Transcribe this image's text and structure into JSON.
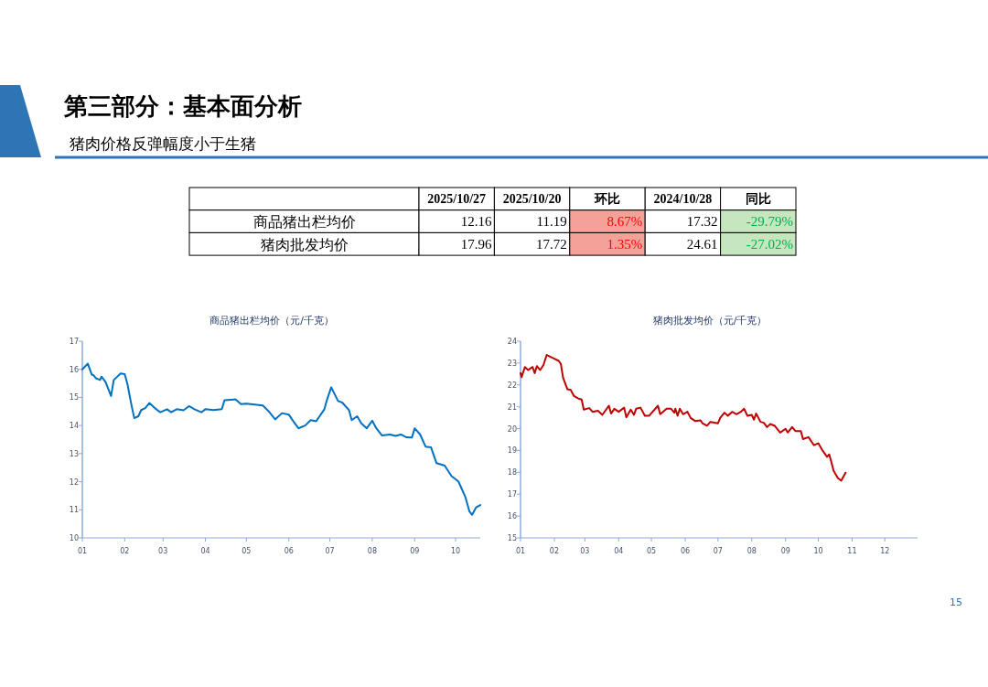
{
  "chart_data": [
    {
      "type": "heatmap",
      "title": "第三部分：基本面分析",
      "subtitle": "猪肉价格反弹幅度小于生猪",
      "annotations": [
        "15"
      ],
      "categories": [
        "2025/10/27",
        "2025/10/20",
        "环比",
        "2024/10/28",
        "同比"
      ],
      "y_categories": [
        "商品猪出栏均价",
        "猪肉批发均价"
      ],
      "cells": [
        [
          12.16,
          11.19,
          8.67,
          17.32,
          -29.79
        ],
        [
          17.96,
          17.72,
          1.35,
          24.61,
          -27.02
        ]
      ],
      "cell_labels": [
        [
          "12.16",
          "11.19",
          "8.67%",
          "17.32",
          "-29.79%"
        ],
        [
          "17.96",
          "17.72",
          "1.35%",
          "24.61",
          "-27.02%"
        ]
      ],
      "colors": [
        [
          "#ffffff",
          "#ffffff",
          "#f4a19a",
          "#ffffff",
          "#c6e6c0"
        ],
        [
          "#ffffff",
          "#ffffff",
          "#f4a19a",
          "#ffffff",
          "#c6e6c0"
        ]
      ]
    },
    {
      "type": "line",
      "title": "商品猪出栏均价（元/千克）",
      "xlim": [
        "--01-01",
        "--10-19"
      ],
      "xticks": [
        {
          "value": "--01-01",
          "label": "01"
        },
        {
          "value": "--02-01",
          "label": "02"
        },
        {
          "value": "--03-01",
          "label": "03"
        },
        {
          "value": "--04-01",
          "label": "04"
        },
        {
          "value": "--05-01",
          "label": "05"
        },
        {
          "value": "--06-01",
          "label": "06"
        },
        {
          "value": "--07-01",
          "label": "07"
        },
        {
          "value": "--08-01",
          "label": "08"
        },
        {
          "value": "--09-01",
          "label": "09"
        },
        {
          "value": "--10-01",
          "label": "10"
        }
      ],
      "ylim": [
        10,
        17
      ],
      "yticks": [
        10,
        11,
        12,
        13,
        14,
        15,
        16,
        17
      ],
      "x": [
        "--01-01",
        "--01-05",
        "--01-08",
        "--01-09",
        "--01-11",
        "--01-14",
        "--01-15",
        "--01-18",
        "--01-22",
        "--01-24",
        "--01-29",
        "--02-01",
        "--02-03",
        "--02-06",
        "--02-08",
        "--02-11",
        "--02-13",
        "--02-16",
        "--02-19",
        "--02-23",
        "--02-27",
        "--03-04",
        "--03-07",
        "--03-11",
        "--03-16",
        "--03-20",
        "--03-24",
        "--03-29",
        "--04-01",
        "--04-07",
        "--04-13",
        "--04-15",
        "--04-23",
        "--04-27",
        "--05-01",
        "--05-13",
        "--05-17",
        "--05-22",
        "--05-27",
        "--06-01",
        "--06-04",
        "--06-08",
        "--06-13",
        "--06-17",
        "--06-21",
        "--06-27",
        "--06-29",
        "--07-02",
        "--07-07",
        "--07-10",
        "--07-15",
        "--07-17",
        "--07-21",
        "--07-24",
        "--07-28",
        "--08-01",
        "--08-04",
        "--08-08",
        "--08-14",
        "--08-18",
        "--08-22",
        "--08-26",
        "--08-30",
        "--09-01",
        "--09-05",
        "--09-09",
        "--09-13",
        "--09-17",
        "--09-23",
        "--09-28",
        "--10-03",
        "--10-08",
        "--10-11",
        "--10-13",
        "--10-16",
        "--10-19"
      ],
      "series": [
        {
          "color": "#0070c0",
          "values": [
            16.0,
            16.2,
            15.8,
            15.8,
            15.68,
            15.62,
            15.74,
            15.55,
            15.05,
            15.62,
            15.85,
            15.83,
            15.47,
            14.71,
            14.26,
            14.33,
            14.55,
            14.62,
            14.8,
            14.62,
            14.47,
            14.58,
            14.47,
            14.58,
            14.54,
            14.69,
            14.58,
            14.47,
            14.58,
            14.55,
            14.58,
            14.9,
            14.93,
            14.76,
            14.78,
            14.71,
            14.52,
            14.22,
            14.44,
            14.39,
            14.17,
            13.9,
            14.0,
            14.19,
            14.15,
            14.58,
            14.93,
            15.36,
            14.87,
            14.82,
            14.55,
            14.19,
            14.33,
            14.08,
            13.9,
            14.17,
            13.9,
            13.65,
            13.68,
            13.63,
            13.68,
            13.58,
            13.57,
            13.9,
            13.68,
            13.25,
            13.22,
            12.66,
            12.57,
            12.2,
            12.01,
            11.47,
            10.95,
            10.82,
            11.09,
            11.17
          ]
        }
      ]
    },
    {
      "type": "line",
      "title": "猪肉批发均价（元/千克）",
      "xlim": [
        "--01-01",
        "--12-31"
      ],
      "xticks": [
        {
          "value": "--01-01",
          "label": "01"
        },
        {
          "value": "--02-01",
          "label": "02"
        },
        {
          "value": "--03-01",
          "label": "03"
        },
        {
          "value": "--04-01",
          "label": "04"
        },
        {
          "value": "--05-01",
          "label": "05"
        },
        {
          "value": "--06-01",
          "label": "06"
        },
        {
          "value": "--07-01",
          "label": "07"
        },
        {
          "value": "--08-01",
          "label": "08"
        },
        {
          "value": "--09-01",
          "label": "09"
        },
        {
          "value": "--10-01",
          "label": "10"
        },
        {
          "value": "--11-01",
          "label": "11"
        },
        {
          "value": "--12-01",
          "label": "12"
        }
      ],
      "ylim": [
        15,
        24
      ],
      "yticks": [
        15,
        16,
        17,
        18,
        19,
        20,
        21,
        22,
        23,
        24
      ],
      "x": [
        "--01-01",
        "--01-02",
        "--01-05",
        "--01-08",
        "--01-12",
        "--01-14",
        "--01-16",
        "--01-19",
        "--01-22",
        "--01-25",
        "--02-01",
        "--02-05",
        "--02-07",
        "--02-09",
        "--02-13",
        "--02-16",
        "--02-19",
        "--02-23",
        "--02-26",
        "--02-28",
        "--03-05",
        "--03-08",
        "--03-13",
        "--03-17",
        "--03-23",
        "--03-25",
        "--03-28",
        "--04-01",
        "--04-06",
        "--04-08",
        "--04-12",
        "--04-15",
        "--04-17",
        "--04-21",
        "--04-25",
        "--04-29",
        "--05-07",
        "--05-09",
        "--05-15",
        "--05-19",
        "--05-22",
        "--05-23",
        "--05-25",
        "--05-27",
        "--05-30",
        "--06-03",
        "--06-06",
        "--06-10",
        "--06-15",
        "--06-17",
        "--06-21",
        "--06-24",
        "--07-01",
        "--07-03",
        "--07-07",
        "--07-10",
        "--07-14",
        "--07-18",
        "--07-22",
        "--07-25",
        "--07-28",
        "--08-01",
        "--08-03",
        "--08-05",
        "--08-09",
        "--08-12",
        "--08-15",
        "--08-18",
        "--08-22",
        "--08-27",
        "--09-01",
        "--09-03",
        "--09-07",
        "--09-10",
        "--09-15",
        "--09-17",
        "--09-22",
        "--09-27",
        "--10-01",
        "--10-05",
        "--10-09",
        "--10-11",
        "--10-13",
        "--10-15",
        "--10-19",
        "--10-22",
        "--10-26"
      ],
      "series": [
        {
          "color": "#c00000",
          "values": [
            22.54,
            22.36,
            22.82,
            22.68,
            22.82,
            22.54,
            22.86,
            22.68,
            22.91,
            23.37,
            23.2,
            23.1,
            22.96,
            22.33,
            21.8,
            21.77,
            21.49,
            21.38,
            21.33,
            20.87,
            20.94,
            20.77,
            20.82,
            20.63,
            21.05,
            20.69,
            20.91,
            20.77,
            20.96,
            20.52,
            20.87,
            20.63,
            20.91,
            20.96,
            20.59,
            20.59,
            21.05,
            20.66,
            20.91,
            20.91,
            20.73,
            20.91,
            20.59,
            20.91,
            20.66,
            20.77,
            20.49,
            20.35,
            20.38,
            20.24,
            20.13,
            20.31,
            20.24,
            20.49,
            20.73,
            20.59,
            20.77,
            20.66,
            20.77,
            20.91,
            20.59,
            20.63,
            20.41,
            20.69,
            20.31,
            20.27,
            20.07,
            20.21,
            20.13,
            19.82,
            19.99,
            19.82,
            20.07,
            19.89,
            19.89,
            19.52,
            19.61,
            19.24,
            19.33,
            18.99,
            18.71,
            18.82,
            18.46,
            18.08,
            17.73,
            17.62,
            17.98
          ]
        }
      ]
    }
  ]
}
